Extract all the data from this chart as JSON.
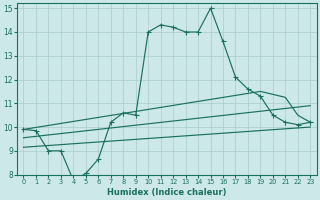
{
  "xlabel": "Humidex (Indice chaleur)",
  "bg_color": "#cce8e8",
  "grid_color": "#aacccc",
  "line_color": "#1a7060",
  "xlim": [
    -0.5,
    23.5
  ],
  "ylim": [
    8,
    15.2
  ],
  "xticks": [
    0,
    1,
    2,
    3,
    4,
    5,
    6,
    7,
    8,
    9,
    10,
    11,
    12,
    13,
    14,
    15,
    16,
    17,
    18,
    19,
    20,
    21,
    22,
    23
  ],
  "yticks": [
    8,
    9,
    10,
    11,
    12,
    13,
    14,
    15
  ],
  "line1_x": [
    0,
    1,
    2,
    3,
    4,
    5,
    6,
    7,
    8,
    9,
    10,
    11,
    12,
    13,
    14,
    15,
    16,
    17,
    18,
    19,
    20,
    21,
    22,
    23
  ],
  "line1_y": [
    9.9,
    9.85,
    9.0,
    9.0,
    7.75,
    8.05,
    8.65,
    10.2,
    10.6,
    10.5,
    14.0,
    14.3,
    14.2,
    14.0,
    14.0,
    15.0,
    13.6,
    12.1,
    11.6,
    11.3,
    10.5,
    10.2,
    10.1,
    10.2
  ],
  "line2_x": [
    0,
    19,
    21,
    22,
    23
  ],
  "line2_y": [
    9.9,
    11.5,
    11.25,
    10.5,
    10.2
  ],
  "line3_x": [
    0,
    23
  ],
  "line3_y": [
    9.55,
    10.9
  ],
  "line4_x": [
    0,
    23
  ],
  "line4_y": [
    9.15,
    10.0
  ]
}
